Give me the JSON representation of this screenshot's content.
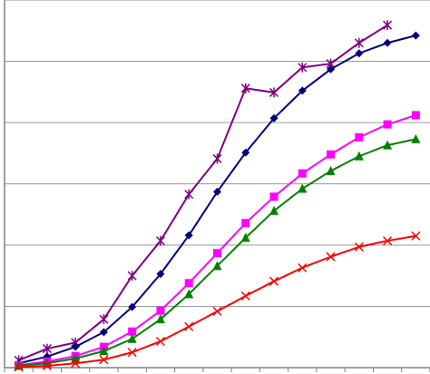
{
  "chart_data": {
    "type": "line",
    "categories": [
      null,
      null,
      null,
      null,
      null,
      null,
      null,
      null,
      null,
      null,
      null,
      null,
      null,
      null,
      null
    ],
    "ylim": [
      0,
      6
    ],
    "yticks": [
      0,
      1,
      2,
      3,
      4,
      5,
      6
    ],
    "grid": true,
    "series": [
      {
        "color": "#800080",
        "marker": "asterisk",
        "values": [
          0.12,
          0.31,
          0.41,
          0.79,
          1.5,
          2.07,
          2.83,
          3.41,
          4.56,
          4.49,
          4.9,
          4.96,
          5.3,
          5.59,
          null
        ]
      },
      {
        "color": "#000080",
        "marker": "diamond",
        "values": [
          0.07,
          0.18,
          0.34,
          0.58,
          0.99,
          1.53,
          2.16,
          2.87,
          3.51,
          4.07,
          4.52,
          4.87,
          5.13,
          5.3,
          5.42
        ]
      },
      {
        "color": "#ff00ff",
        "marker": "square",
        "values": [
          0.04,
          0.1,
          0.19,
          0.34,
          0.59,
          0.93,
          1.38,
          1.87,
          2.36,
          2.79,
          3.17,
          3.48,
          3.76,
          3.97,
          4.12
        ]
      },
      {
        "color": "#008000",
        "marker": "triangle",
        "values": [
          0.03,
          0.07,
          0.15,
          0.27,
          0.47,
          0.79,
          1.2,
          1.66,
          2.12,
          2.56,
          2.92,
          3.21,
          3.45,
          3.63,
          3.73
        ]
      },
      {
        "color": "#ff0000",
        "marker": "x",
        "values": [
          0.01,
          0.03,
          0.07,
          0.13,
          0.25,
          0.43,
          0.67,
          0.92,
          1.17,
          1.41,
          1.63,
          1.81,
          1.97,
          2.07,
          2.15
        ]
      }
    ]
  }
}
